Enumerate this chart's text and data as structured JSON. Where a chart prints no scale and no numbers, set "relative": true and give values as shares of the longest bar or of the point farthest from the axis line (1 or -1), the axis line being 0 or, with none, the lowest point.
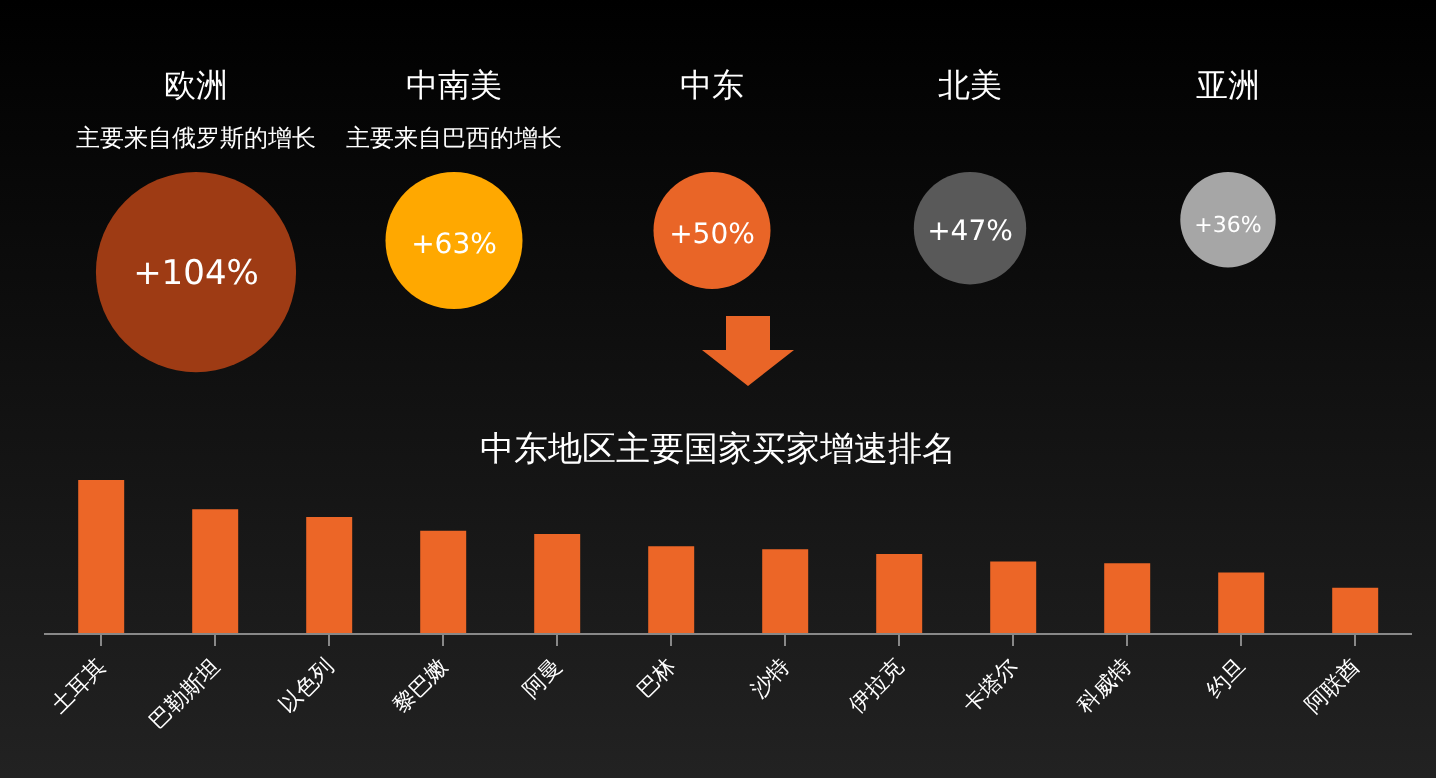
{
  "chart_data": [
    {
      "type": "other",
      "categories": [
        "欧洲",
        "中南美",
        "中东",
        "北美",
        "亚洲"
      ],
      "values": [
        104,
        63,
        50,
        47,
        36
      ],
      "value_labels": [
        "+104%",
        "+63%",
        "+50%",
        "+47%",
        "+36%"
      ],
      "colors": [
        "#9e3b14",
        "#ffa800",
        "#e96527",
        "#595959",
        "#a6a6a6"
      ],
      "annotations": [
        "主要来自俄罗斯的增长",
        "主要来自巴西的增长",
        null,
        null,
        null
      ]
    },
    {
      "type": "bar",
      "title": "中东地区主要国家买家增速排名",
      "relative": true,
      "color": "#ec6627",
      "categories": [
        "土耳其",
        "巴勒斯坦",
        "以色列",
        "黎巴嫩",
        "阿曼",
        "巴林",
        "沙特",
        "伊拉克",
        "卡塔尔",
        "科威特",
        "约旦",
        "阿联酋"
      ],
      "values": [
        1,
        0.81,
        0.76,
        0.67,
        0.65,
        0.57,
        0.55,
        0.52,
        0.47,
        0.46,
        0.4,
        0.3
      ],
      "grid": false,
      "legend": false
    }
  ]
}
